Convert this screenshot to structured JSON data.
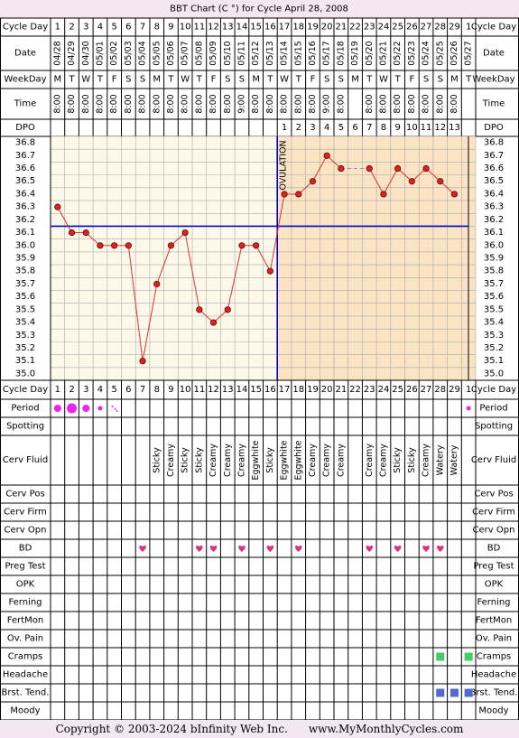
{
  "title": "BBT Chart (C °) for Cycle April 28, 2008",
  "footer": {
    "copyright": "Copyright © 2003-2024 bInfinity Web Inc.",
    "site": "www.MyMonthlyCycles.com"
  },
  "row_labels": {
    "cycle_day": "Cycle Day",
    "date": "Date",
    "weekday": "WeekDay",
    "time": "Time",
    "dpo": "DPO",
    "period": "Period",
    "spotting": "Spotting",
    "cerv_fluid": "Cerv Fluid",
    "cerv_pos": "Cerv Pos",
    "cerv_firm": "Cerv Firm",
    "cerv_opn": "Cerv Opn",
    "bd": "BD",
    "preg_test": "Preg Test",
    "opk": "OPK",
    "ferning": "Ferning",
    "fertmon": "FertMon",
    "ov_pain": "Ov. Pain",
    "cramps": "Cramps",
    "headache": "Headache",
    "brst_tend": "Brst. Tend.",
    "moody": "Moody"
  },
  "ovulation_label": "OVULATION",
  "colors": {
    "background": "#f3e7f4",
    "pre_ovulation": "#fdf9e9",
    "post_ovulation": "#fbe4c3",
    "coverline": "#0000cc",
    "temp_line": "#e23030",
    "point_fill": "#dd2222",
    "period": "#ee22ee",
    "bd": "#e0307a",
    "cramps": "#44cc66",
    "brst_tend": "#5566cc"
  },
  "chart_data": {
    "type": "line",
    "title": "BBT Chart (C °) for Cycle April 28, 2008",
    "cycle_days": [
      "1",
      "2",
      "3",
      "4",
      "5",
      "6",
      "7",
      "8",
      "9",
      "10",
      "11",
      "12",
      "13",
      "14",
      "15",
      "16",
      "17",
      "18",
      "19",
      "20",
      "21",
      "22",
      "23",
      "24",
      "25",
      "26",
      "27",
      "28",
      "29",
      "1"
    ],
    "dates": [
      "04/28",
      "04/29",
      "04/30",
      "05/01",
      "05/02",
      "05/03",
      "05/04",
      "05/05",
      "05/06",
      "05/07",
      "05/08",
      "05/09",
      "05/10",
      "05/11",
      "05/12",
      "05/13",
      "05/14",
      "05/15",
      "05/16",
      "05/17",
      "05/18",
      "05/19",
      "05/20",
      "05/21",
      "05/22",
      "05/23",
      "05/24",
      "05/25",
      "05/26",
      "05/27"
    ],
    "weekdays": [
      "M",
      "T",
      "W",
      "T",
      "F",
      "S",
      "S",
      "M",
      "T",
      "W",
      "T",
      "F",
      "S",
      "S",
      "M",
      "T",
      "W",
      "T",
      "F",
      "S",
      "S",
      "M",
      "T",
      "W",
      "T",
      "F",
      "S",
      "S",
      "M",
      "T"
    ],
    "times": [
      "8:00",
      "8:00",
      "8:00",
      "8:00",
      "8:00",
      "8:00",
      "8:00",
      "8:00",
      "8:00",
      "8:00",
      "8:00",
      "8:00",
      "8:00",
      "9:00",
      "8:00",
      "8:00",
      "8:00",
      "8:00",
      "8:00",
      "9:00",
      "8:00",
      "",
      "8:00",
      "8:00",
      "8:00",
      "8:00",
      "8:00",
      "8:00",
      "8:00",
      ""
    ],
    "dpo": [
      "",
      "",
      "",
      "",
      "",
      "",
      "",
      "",
      "",
      "",
      "",
      "",
      "",
      "",
      "",
      "",
      "1",
      "2",
      "3",
      "4",
      "5",
      "6",
      "7",
      "8",
      "9",
      "10",
      "11",
      "12",
      "13",
      ""
    ],
    "temperatures": [
      36.3,
      36.1,
      36.1,
      36.0,
      36.0,
      36.0,
      35.1,
      35.7,
      36.0,
      36.1,
      35.5,
      35.4,
      35.5,
      36.0,
      36.0,
      35.8,
      36.4,
      36.4,
      36.5,
      36.7,
      36.6,
      null,
      36.6,
      36.4,
      36.6,
      36.5,
      36.6,
      36.5,
      36.4,
      null
    ],
    "y_ticks": [
      "36.8",
      "36.7",
      "36.6",
      "36.5",
      "36.4",
      "36.3",
      "36.2",
      "36.1",
      "36.0",
      "35.9",
      "35.8",
      "35.7",
      "35.6",
      "35.5",
      "35.4",
      "35.3",
      "35.2",
      "35.1",
      "35.0"
    ],
    "ylim": [
      35.0,
      36.8
    ],
    "coverline": 36.15,
    "ovulation_day": 16,
    "period": [
      3,
      4,
      3,
      2,
      1,
      0,
      0,
      0,
      0,
      0,
      0,
      0,
      0,
      0,
      0,
      0,
      0,
      0,
      0,
      0,
      0,
      0,
      0,
      0,
      0,
      0,
      0,
      0,
      0,
      2
    ],
    "cerv_fluid": [
      "",
      "",
      "",
      "",
      "",
      "",
      "",
      "Sticky",
      "Creamy",
      "Sticky",
      "Sticky",
      "Creamy",
      "Creamy",
      "Creamy",
      "Eggwhite",
      "Sticky",
      "Eggwhite",
      "Eggwhite",
      "Creamy",
      "Creamy",
      "Creamy",
      "",
      "Creamy",
      "Creamy",
      "Sticky",
      "Sticky",
      "Creamy",
      "Watery",
      "Watery",
      ""
    ],
    "bd_days": [
      7,
      11,
      12,
      14,
      16,
      18,
      23,
      25,
      27,
      28
    ],
    "cramps_days": [
      28,
      30
    ],
    "brst_tend_days": [
      28,
      29,
      30
    ],
    "legend": "none",
    "grid": true
  }
}
